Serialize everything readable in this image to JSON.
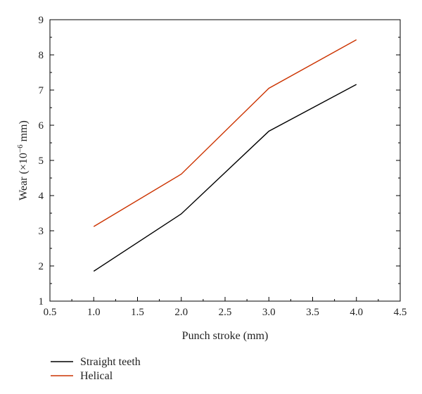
{
  "chart_data": {
    "type": "line",
    "title": "",
    "xlabel": "Punch stroke (mm)",
    "ylabel": {
      "prefix": "Wear (×10",
      "exponent": "−6",
      "suffix": " mm)"
    },
    "xlim": [
      0.5,
      4.5
    ],
    "ylim": [
      1,
      9
    ],
    "xticks": [
      "0.5",
      "1.0",
      "1.5",
      "2.0",
      "2.5",
      "3.0",
      "3.5",
      "4.0",
      "4.5"
    ],
    "yticks": [
      "1",
      "2",
      "3",
      "4",
      "5",
      "6",
      "7",
      "8",
      "9"
    ],
    "grid": false,
    "legend_position": "bottom-left",
    "x": [
      1.0,
      2.0,
      3.0,
      4.0
    ],
    "series": [
      {
        "name": "Straight teeth",
        "color": "#000000",
        "values": [
          1.85,
          3.48,
          5.83,
          7.16
        ]
      },
      {
        "name": "Helical",
        "color": "#cc3300",
        "values": [
          3.12,
          4.61,
          7.05,
          8.43
        ]
      }
    ]
  }
}
